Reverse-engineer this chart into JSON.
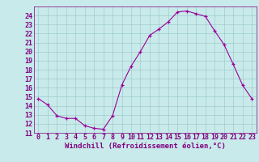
{
  "x": [
    0,
    1,
    2,
    3,
    4,
    5,
    6,
    7,
    8,
    9,
    10,
    11,
    12,
    13,
    14,
    15,
    16,
    17,
    18,
    19,
    20,
    21,
    22,
    23
  ],
  "y": [
    14.8,
    14.1,
    12.9,
    12.6,
    12.6,
    11.8,
    11.5,
    11.4,
    12.9,
    16.3,
    18.4,
    20.0,
    21.8,
    22.5,
    23.3,
    24.4,
    24.5,
    24.2,
    23.9,
    22.3,
    20.8,
    18.6,
    16.3,
    14.8
  ],
  "line_color": "#990099",
  "marker": "+",
  "bg_color": "#c8eaea",
  "grid_color": "#a0cccc",
  "tick_label_color": "#800080",
  "xlabel": "Windchill (Refroidissement éolien,°C)",
  "xlabel_color": "#800080",
  "xlim": [
    -0.5,
    23.5
  ],
  "ylim": [
    11,
    25
  ],
  "yticks": [
    11,
    12,
    13,
    14,
    15,
    16,
    17,
    18,
    19,
    20,
    21,
    22,
    23,
    24
  ],
  "xticks": [
    0,
    1,
    2,
    3,
    4,
    5,
    6,
    7,
    8,
    9,
    10,
    11,
    12,
    13,
    14,
    15,
    16,
    17,
    18,
    19,
    20,
    21,
    22,
    23
  ],
  "font_size": 6.0,
  "xlabel_font_size": 6.5
}
